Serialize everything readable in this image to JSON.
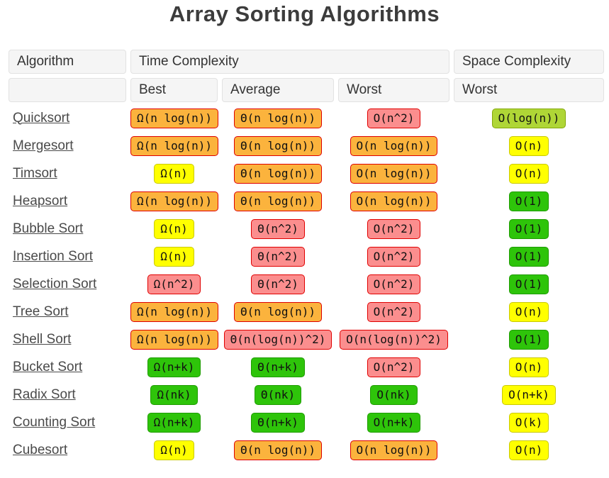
{
  "title": "Array Sorting Algorithms",
  "colors": {
    "ratings": {
      "excellent": {
        "bg": "#2ec40a",
        "border": "#1e9c00"
      },
      "good": {
        "bg": "#afd636",
        "border": "#84a80b"
      },
      "fair": {
        "bg": "#ffff00",
        "border": "#c9c900"
      },
      "bad": {
        "bg": "#fbb33d",
        "border": "#de0000"
      },
      "horrible": {
        "bg": "#fb8e8e",
        "border": "#e00000"
      }
    },
    "header_bg": "#f5f5f5",
    "link_color": "#4a4a4a"
  },
  "table": {
    "headers": {
      "algorithm": "Algorithm",
      "time_complexity": "Time Complexity",
      "space_complexity": "Space Complexity",
      "best": "Best",
      "average": "Average",
      "worst": "Worst",
      "space_worst": "Worst"
    },
    "rows": [
      {
        "name": "Quicksort",
        "best": {
          "text": "Ω(n log(n))",
          "rating": "bad"
        },
        "average": {
          "text": "Θ(n log(n))",
          "rating": "bad"
        },
        "worst": {
          "text": "O(n^2)",
          "rating": "horrible"
        },
        "space": {
          "text": "O(log(n))",
          "rating": "good"
        }
      },
      {
        "name": "Mergesort",
        "best": {
          "text": "Ω(n log(n))",
          "rating": "bad"
        },
        "average": {
          "text": "Θ(n log(n))",
          "rating": "bad"
        },
        "worst": {
          "text": "O(n log(n))",
          "rating": "bad"
        },
        "space": {
          "text": "O(n)",
          "rating": "fair"
        }
      },
      {
        "name": "Timsort",
        "best": {
          "text": "Ω(n)",
          "rating": "fair"
        },
        "average": {
          "text": "Θ(n log(n))",
          "rating": "bad"
        },
        "worst": {
          "text": "O(n log(n))",
          "rating": "bad"
        },
        "space": {
          "text": "O(n)",
          "rating": "fair"
        }
      },
      {
        "name": "Heapsort",
        "best": {
          "text": "Ω(n log(n))",
          "rating": "bad"
        },
        "average": {
          "text": "Θ(n log(n))",
          "rating": "bad"
        },
        "worst": {
          "text": "O(n log(n))",
          "rating": "bad"
        },
        "space": {
          "text": "O(1)",
          "rating": "excellent"
        }
      },
      {
        "name": "Bubble Sort",
        "best": {
          "text": "Ω(n)",
          "rating": "fair"
        },
        "average": {
          "text": "Θ(n^2)",
          "rating": "horrible"
        },
        "worst": {
          "text": "O(n^2)",
          "rating": "horrible"
        },
        "space": {
          "text": "O(1)",
          "rating": "excellent"
        }
      },
      {
        "name": "Insertion Sort",
        "best": {
          "text": "Ω(n)",
          "rating": "fair"
        },
        "average": {
          "text": "Θ(n^2)",
          "rating": "horrible"
        },
        "worst": {
          "text": "O(n^2)",
          "rating": "horrible"
        },
        "space": {
          "text": "O(1)",
          "rating": "excellent"
        }
      },
      {
        "name": "Selection Sort",
        "best": {
          "text": "Ω(n^2)",
          "rating": "horrible"
        },
        "average": {
          "text": "Θ(n^2)",
          "rating": "horrible"
        },
        "worst": {
          "text": "O(n^2)",
          "rating": "horrible"
        },
        "space": {
          "text": "O(1)",
          "rating": "excellent"
        }
      },
      {
        "name": "Tree Sort",
        "best": {
          "text": "Ω(n log(n))",
          "rating": "bad"
        },
        "average": {
          "text": "Θ(n log(n))",
          "rating": "bad"
        },
        "worst": {
          "text": "O(n^2)",
          "rating": "horrible"
        },
        "space": {
          "text": "O(n)",
          "rating": "fair"
        }
      },
      {
        "name": "Shell Sort",
        "best": {
          "text": "Ω(n log(n))",
          "rating": "bad"
        },
        "average": {
          "text": "Θ(n(log(n))^2)",
          "rating": "horrible"
        },
        "worst": {
          "text": "O(n(log(n))^2)",
          "rating": "horrible"
        },
        "space": {
          "text": "O(1)",
          "rating": "excellent"
        }
      },
      {
        "name": "Bucket Sort",
        "best": {
          "text": "Ω(n+k)",
          "rating": "excellent"
        },
        "average": {
          "text": "Θ(n+k)",
          "rating": "excellent"
        },
        "worst": {
          "text": "O(n^2)",
          "rating": "horrible"
        },
        "space": {
          "text": "O(n)",
          "rating": "fair"
        }
      },
      {
        "name": "Radix Sort",
        "best": {
          "text": "Ω(nk)",
          "rating": "excellent"
        },
        "average": {
          "text": "Θ(nk)",
          "rating": "excellent"
        },
        "worst": {
          "text": "O(nk)",
          "rating": "excellent"
        },
        "space": {
          "text": "O(n+k)",
          "rating": "fair"
        }
      },
      {
        "name": "Counting Sort",
        "best": {
          "text": "Ω(n+k)",
          "rating": "excellent"
        },
        "average": {
          "text": "Θ(n+k)",
          "rating": "excellent"
        },
        "worst": {
          "text": "O(n+k)",
          "rating": "excellent"
        },
        "space": {
          "text": "O(k)",
          "rating": "fair"
        }
      },
      {
        "name": "Cubesort",
        "best": {
          "text": "Ω(n)",
          "rating": "fair"
        },
        "average": {
          "text": "Θ(n log(n))",
          "rating": "bad"
        },
        "worst": {
          "text": "O(n log(n))",
          "rating": "bad"
        },
        "space": {
          "text": "O(n)",
          "rating": "fair"
        }
      }
    ]
  }
}
